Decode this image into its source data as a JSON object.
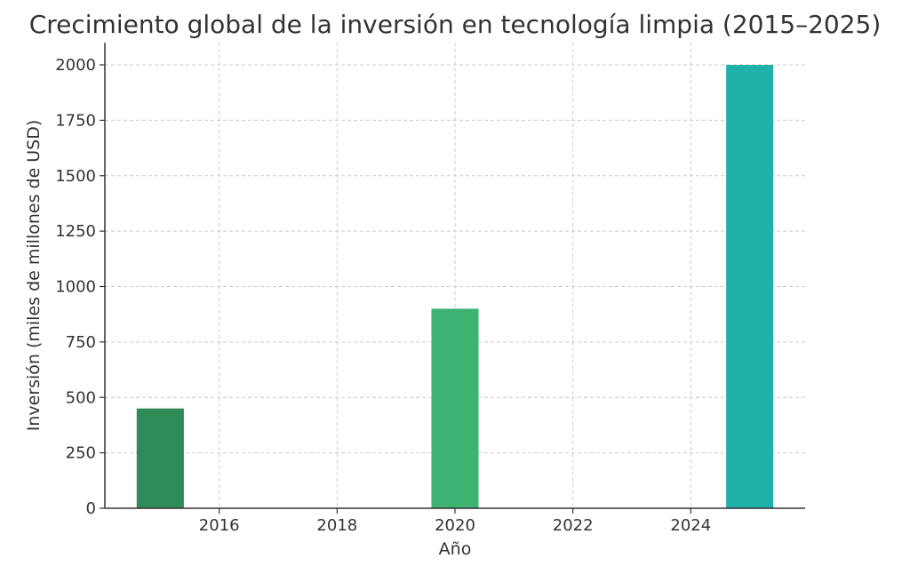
{
  "chart_data": {
    "type": "bar",
    "title": "Crecimiento global de la inversión en tecnología limpia (2015–2025)",
    "xlabel": "Año",
    "ylabel": "Inversión (miles de millones de USD)",
    "categories": [
      2015,
      2020,
      2025
    ],
    "values": [
      450,
      900,
      2000
    ],
    "colors": [
      "#2E8B57",
      "#3CB371",
      "#20B2AA"
    ],
    "bar_width_years": 0.8,
    "xlim": [
      2014.06,
      2025.94
    ],
    "ylim": [
      0,
      2100
    ],
    "xticks": [
      2016,
      2018,
      2020,
      2022,
      2024
    ],
    "yticks": [
      0,
      250,
      500,
      750,
      1000,
      1250,
      1500,
      1750,
      2000
    ],
    "grid": true,
    "legend": "none"
  }
}
